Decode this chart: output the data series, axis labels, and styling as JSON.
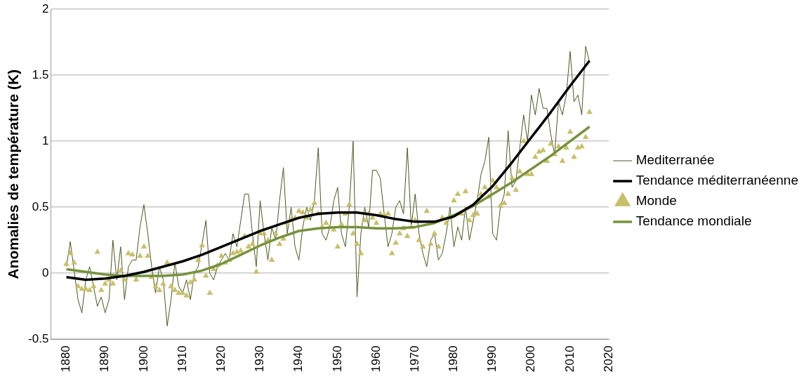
{
  "chart_data": {
    "type": "line",
    "ylabel": "Anomalies de température (K)",
    "xlim": [
      1876,
      2020
    ],
    "xticks": [
      1880,
      1890,
      1900,
      1910,
      1920,
      1930,
      1940,
      1950,
      1960,
      1970,
      1980,
      1990,
      2000,
      2010,
      2020
    ],
    "ylim": [
      -0.5,
      2
    ],
    "yticks": [
      -0.5,
      0,
      0.5,
      1,
      1.5,
      2
    ],
    "grid": "y",
    "legend": "right",
    "line_style": "solid",
    "series": [
      {
        "name": "Mediterranée",
        "type": "line",
        "marker": "none",
        "color": "#4a5a1e",
        "x": [
          1880,
          1881,
          1882,
          1883,
          1884,
          1885,
          1886,
          1887,
          1888,
          1889,
          1890,
          1891,
          1892,
          1893,
          1894,
          1895,
          1896,
          1897,
          1898,
          1899,
          1900,
          1901,
          1902,
          1903,
          1904,
          1905,
          1906,
          1907,
          1908,
          1909,
          1910,
          1911,
          1912,
          1913,
          1914,
          1915,
          1916,
          1917,
          1918,
          1919,
          1920,
          1921,
          1922,
          1923,
          1924,
          1925,
          1926,
          1927,
          1928,
          1929,
          1930,
          1931,
          1932,
          1933,
          1934,
          1935,
          1936,
          1937,
          1938,
          1939,
          1940,
          1941,
          1942,
          1943,
          1944,
          1945,
          1946,
          1947,
          1948,
          1949,
          1950,
          1951,
          1952,
          1953,
          1954,
          1955,
          1956,
          1957,
          1958,
          1959,
          1960,
          1961,
          1962,
          1963,
          1964,
          1965,
          1966,
          1967,
          1968,
          1969,
          1970,
          1971,
          1972,
          1973,
          1974,
          1975,
          1976,
          1977,
          1978,
          1979,
          1980,
          1981,
          1982,
          1983,
          1984,
          1985,
          1986,
          1987,
          1988,
          1989,
          1990,
          1991,
          1992,
          1993,
          1994,
          1995,
          1996,
          1997,
          1998,
          1999,
          2000,
          2001,
          2002,
          2003,
          2004,
          2005,
          2006,
          2007,
          2008,
          2009,
          2010,
          2011,
          2012,
          2013,
          2014,
          2015
        ],
        "values": [
          0.05,
          0.24,
          0.02,
          -0.2,
          -0.3,
          -0.05,
          0.05,
          -0.1,
          -0.25,
          -0.18,
          -0.3,
          -0.2,
          0.25,
          -0.05,
          0.2,
          -0.2,
          0.05,
          0.1,
          0.1,
          0.35,
          0.52,
          0.3,
          0.05,
          -0.15,
          0.05,
          -0.05,
          -0.4,
          -0.2,
          0.08,
          -0.1,
          -0.15,
          -0.05,
          -0.2,
          0,
          0.05,
          0.22,
          0.4,
          0,
          -0.05,
          0.05,
          0.1,
          0.15,
          0.1,
          0.3,
          0.2,
          0.4,
          0.6,
          0.6,
          0.3,
          0.05,
          0.55,
          0.3,
          0.1,
          0.35,
          0.25,
          0.55,
          0.8,
          0.3,
          0.5,
          0.2,
          0.1,
          0.35,
          0.5,
          0.4,
          0.55,
          0.95,
          0.3,
          0.25,
          0.35,
          0.55,
          0.65,
          0.3,
          0.2,
          0.5,
          1.0,
          -0.18,
          0.3,
          0.5,
          0.35,
          0.78,
          0.78,
          0.72,
          0.45,
          0.2,
          0.3,
          0.5,
          0.55,
          0.45,
          0.95,
          0.35,
          0.6,
          0.3,
          0.15,
          0.05,
          0.25,
          0.3,
          0.1,
          0.15,
          0.3,
          0.5,
          0.2,
          0.35,
          0.25,
          0.5,
          0.25,
          0.4,
          0.55,
          0.75,
          0.85,
          1.03,
          0.3,
          0.25,
          0.5,
          0.6,
          1.08,
          0.65,
          0.7,
          0.95,
          1.2,
          1.0,
          1.35,
          1.2,
          1.4,
          1.25,
          1.25,
          1.05,
          0.9,
          1.3,
          1.2,
          1.35,
          1.68,
          1.3,
          1.35,
          1.2,
          1.72,
          1.6
        ]
      },
      {
        "name": "Tendance méditerranéenne",
        "type": "line",
        "marker": "none",
        "color": "#000000",
        "x": [
          1880,
          1885,
          1890,
          1895,
          1900,
          1905,
          1910,
          1915,
          1920,
          1925,
          1930,
          1935,
          1940,
          1945,
          1950,
          1955,
          1960,
          1965,
          1970,
          1975,
          1980,
          1985,
          1990,
          1995,
          2000,
          2005,
          2010,
          2015
        ],
        "values": [
          -0.03,
          -0.05,
          -0.04,
          -0.02,
          0.01,
          0.05,
          0.09,
          0.14,
          0.2,
          0.26,
          0.32,
          0.37,
          0.42,
          0.45,
          0.46,
          0.46,
          0.44,
          0.41,
          0.39,
          0.39,
          0.43,
          0.52,
          0.66,
          0.84,
          1.03,
          1.22,
          1.42,
          1.61
        ]
      },
      {
        "name": "Monde",
        "type": "scatter",
        "marker": "triangle",
        "color": "#c8bf6a",
        "x": [
          1880,
          1881,
          1882,
          1883,
          1884,
          1885,
          1886,
          1887,
          1888,
          1889,
          1890,
          1891,
          1892,
          1893,
          1894,
          1895,
          1896,
          1897,
          1898,
          1899,
          1900,
          1901,
          1902,
          1903,
          1904,
          1905,
          1906,
          1907,
          1908,
          1909,
          1910,
          1911,
          1912,
          1913,
          1914,
          1915,
          1916,
          1917,
          1918,
          1919,
          1920,
          1921,
          1922,
          1923,
          1924,
          1925,
          1926,
          1927,
          1928,
          1929,
          1930,
          1931,
          1932,
          1933,
          1934,
          1935,
          1936,
          1937,
          1938,
          1939,
          1940,
          1941,
          1942,
          1943,
          1944,
          1945,
          1946,
          1947,
          1948,
          1949,
          1950,
          1951,
          1952,
          1953,
          1954,
          1955,
          1956,
          1957,
          1958,
          1959,
          1960,
          1961,
          1962,
          1963,
          1964,
          1965,
          1966,
          1967,
          1968,
          1969,
          1970,
          1971,
          1972,
          1973,
          1974,
          1975,
          1976,
          1977,
          1978,
          1979,
          1980,
          1981,
          1982,
          1983,
          1984,
          1985,
          1986,
          1987,
          1988,
          1989,
          1990,
          1991,
          1992,
          1993,
          1994,
          1995,
          1996,
          1997,
          1998,
          1999,
          2000,
          2001,
          2002,
          2003,
          2004,
          2005,
          2006,
          2007,
          2008,
          2009,
          2010,
          2011,
          2012,
          2013,
          2014,
          2015
        ],
        "values": [
          0.07,
          0.15,
          0.08,
          -0.1,
          -0.12,
          -0.12,
          -0.13,
          -0.1,
          0.16,
          -0.13,
          -0.08,
          -0.05,
          -0.08,
          -0.02,
          0.02,
          -0.05,
          0.15,
          0.14,
          -0.05,
          0.13,
          0.2,
          0.13,
          -0.03,
          -0.1,
          -0.13,
          -0.08,
          0.08,
          -0.1,
          -0.13,
          -0.15,
          -0.15,
          -0.17,
          -0.07,
          -0.05,
          0.1,
          0.21,
          -0.02,
          -0.15,
          0.03,
          0.06,
          0.13,
          0.08,
          0.1,
          0.15,
          0.16,
          0.17,
          0.28,
          0.2,
          0.22,
          0.01,
          0.3,
          0.3,
          0.25,
          0.1,
          0.3,
          0.22,
          0.26,
          0.38,
          0.4,
          0.42,
          0.47,
          0.46,
          0.42,
          0.48,
          0.53,
          0.45,
          0.35,
          0.38,
          0.35,
          0.33,
          0.2,
          0.37,
          0.45,
          0.52,
          0.3,
          0.22,
          0.15,
          0.4,
          0.45,
          0.42,
          0.38,
          0.45,
          0.44,
          0.45,
          0.15,
          0.23,
          0.3,
          0.34,
          0.28,
          0.35,
          0.4,
          0.25,
          0.2,
          0.47,
          0.22,
          0.3,
          0.2,
          0.42,
          0.38,
          0.42,
          0.55,
          0.6,
          0.45,
          0.62,
          0.4,
          0.44,
          0.45,
          0.6,
          0.65,
          0.58,
          0.7,
          0.65,
          0.51,
          0.53,
          0.6,
          0.72,
          0.63,
          0.77,
          1.0,
          0.75,
          0.75,
          0.88,
          0.92,
          0.93,
          0.85,
          0.98,
          0.9,
          0.96,
          0.85,
          0.95,
          1.07,
          0.88,
          0.95,
          0.96,
          1.03,
          1.22
        ]
      },
      {
        "name": "Tendance mondiale",
        "type": "line",
        "marker": "none",
        "color": "#76923c",
        "x": [
          1880,
          1885,
          1890,
          1895,
          1900,
          1905,
          1910,
          1915,
          1920,
          1925,
          1930,
          1935,
          1940,
          1945,
          1950,
          1955,
          1960,
          1965,
          1970,
          1975,
          1980,
          1985,
          1990,
          1995,
          2000,
          2005,
          2010,
          2015
        ],
        "values": [
          0.03,
          0.01,
          -0.01,
          -0.02,
          -0.02,
          -0.02,
          -0.01,
          0.02,
          0.07,
          0.14,
          0.21,
          0.27,
          0.32,
          0.34,
          0.35,
          0.35,
          0.34,
          0.34,
          0.35,
          0.38,
          0.44,
          0.51,
          0.6,
          0.69,
          0.79,
          0.89,
          1.0,
          1.11
        ]
      }
    ]
  }
}
